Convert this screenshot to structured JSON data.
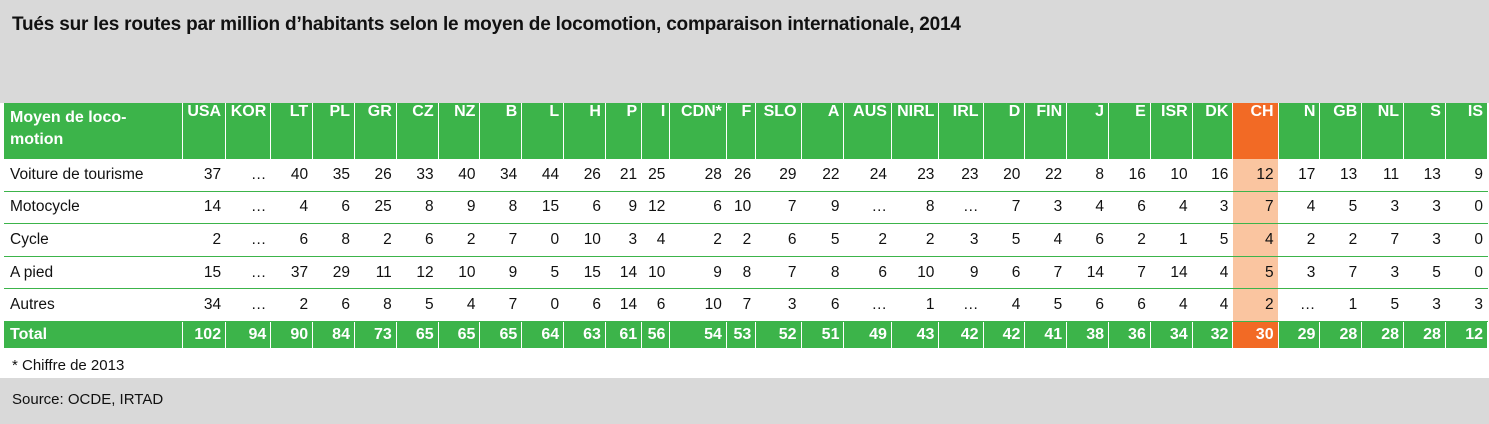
{
  "title": "Tués sur les routes par million d’habitants selon le moyen de locomotion, comparaison internationale, 2014",
  "header_label": "Moyen de loco-\nmotion",
  "columns": [
    "USA",
    "KOR",
    "LT",
    "PL",
    "GR",
    "CZ",
    "NZ",
    "B",
    "L",
    "H",
    "P",
    "I",
    "CDN*",
    "F",
    "SLO",
    "A",
    "AUS",
    "NIRL",
    "IRL",
    "D",
    "FIN",
    "J",
    "E",
    "ISR",
    "DK",
    "CH",
    "N",
    "GB",
    "NL",
    "S",
    "IS"
  ],
  "highlight_column": "CH",
  "rows": [
    {
      "label": "Voiture de tourisme",
      "values": [
        "37",
        "…",
        "40",
        "35",
        "26",
        "33",
        "40",
        "34",
        "44",
        "26",
        "21",
        "25",
        "28",
        "26",
        "29",
        "22",
        "24",
        "23",
        "23",
        "20",
        "22",
        "8",
        "16",
        "10",
        "16",
        "12",
        "17",
        "13",
        "11",
        "13",
        "9"
      ]
    },
    {
      "label": "Motocycle",
      "values": [
        "14",
        "…",
        "4",
        "6",
        "25",
        "8",
        "9",
        "8",
        "15",
        "6",
        "9",
        "12",
        "6",
        "10",
        "7",
        "9",
        "…",
        "8",
        "…",
        "7",
        "3",
        "4",
        "6",
        "4",
        "3",
        "7",
        "4",
        "5",
        "3",
        "3",
        "0"
      ]
    },
    {
      "label": "Cycle",
      "values": [
        "2",
        "…",
        "6",
        "8",
        "2",
        "6",
        "2",
        "7",
        "0",
        "10",
        "3",
        "4",
        "2",
        "2",
        "6",
        "5",
        "2",
        "2",
        "3",
        "5",
        "4",
        "6",
        "2",
        "1",
        "5",
        "4",
        "2",
        "2",
        "7",
        "3",
        "0"
      ]
    },
    {
      "label": "A pied",
      "values": [
        "15",
        "…",
        "37",
        "29",
        "11",
        "12",
        "10",
        "9",
        "5",
        "15",
        "14",
        "10",
        "9",
        "8",
        "7",
        "8",
        "6",
        "10",
        "9",
        "6",
        "7",
        "14",
        "7",
        "14",
        "4",
        "5",
        "3",
        "7",
        "3",
        "5",
        "0"
      ]
    },
    {
      "label": "Autres",
      "values": [
        "34",
        "…",
        "2",
        "6",
        "8",
        "5",
        "4",
        "7",
        "0",
        "6",
        "14",
        "6",
        "10",
        "7",
        "3",
        "6",
        "…",
        "1",
        "…",
        "4",
        "5",
        "6",
        "6",
        "4",
        "4",
        "2",
        "…",
        "1",
        "5",
        "3",
        "3"
      ]
    }
  ],
  "total": {
    "label": "Total",
    "values": [
      "102",
      "94",
      "90",
      "84",
      "73",
      "65",
      "65",
      "65",
      "64",
      "63",
      "61",
      "56",
      "54",
      "53",
      "52",
      "51",
      "49",
      "43",
      "42",
      "42",
      "41",
      "38",
      "36",
      "34",
      "32",
      "30",
      "29",
      "28",
      "28",
      "28",
      "12"
    ]
  },
  "footnote": "* Chiffre de 2013",
  "source": "Source: OCDE, IRTAD",
  "colors": {
    "header_green": "#3cb44a",
    "highlight_orange": "#f26a25",
    "highlight_light": "#fac5a0",
    "band_gray": "#d9d9d9"
  }
}
